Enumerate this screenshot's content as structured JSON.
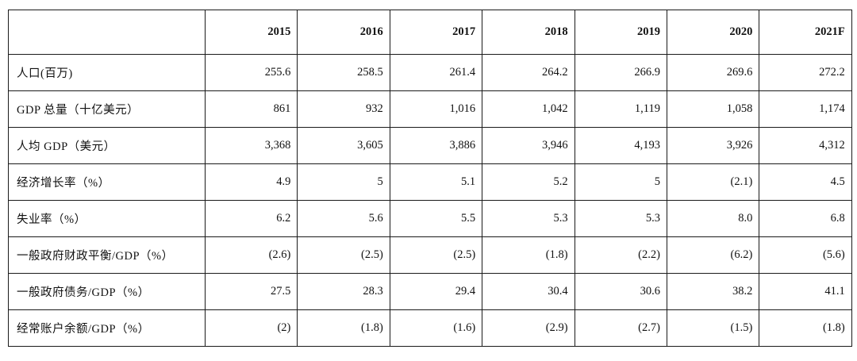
{
  "table": {
    "corner": "",
    "years": [
      "2015",
      "2016",
      "2017",
      "2018",
      "2019",
      "2020",
      "2021F"
    ],
    "rows": [
      {
        "label": "人口(百万)",
        "values": [
          "255.6",
          "258.5",
          "261.4",
          "264.2",
          "266.9",
          "269.6",
          "272.2"
        ]
      },
      {
        "label": "GDP 总量（十亿美元）",
        "values": [
          "861",
          "932",
          "1,016",
          "1,042",
          "1,119",
          "1,058",
          "1,174"
        ]
      },
      {
        "label": "人均 GDP（美元）",
        "values": [
          "3,368",
          "3,605",
          "3,886",
          "3,946",
          "4,193",
          "3,926",
          "4,312"
        ]
      },
      {
        "label": "经济增长率（%）",
        "values": [
          "4.9",
          "5",
          "5.1",
          "5.2",
          "5",
          "(2.1)",
          "4.5"
        ]
      },
      {
        "label": "失业率（%）",
        "values": [
          "6.2",
          "5.6",
          "5.5",
          "5.3",
          "5.3",
          "8.0",
          "6.8"
        ]
      },
      {
        "label": "一般政府财政平衡/GDP（%）",
        "values": [
          "(2.6)",
          "(2.5)",
          "(2.5)",
          "(1.8)",
          "(2.2)",
          "(6.2)",
          "(5.6)"
        ]
      },
      {
        "label": "一般政府债务/GDP（%）",
        "values": [
          "27.5",
          "28.3",
          "29.4",
          "30.4",
          "30.6",
          "38.2",
          "41.1"
        ]
      },
      {
        "label": "经常账户余额/GDP（%）",
        "values": [
          "(2)",
          "(1.8)",
          "(1.6)",
          "(2.9)",
          "(2.7)",
          "(1.5)",
          "(1.8)"
        ]
      }
    ]
  }
}
